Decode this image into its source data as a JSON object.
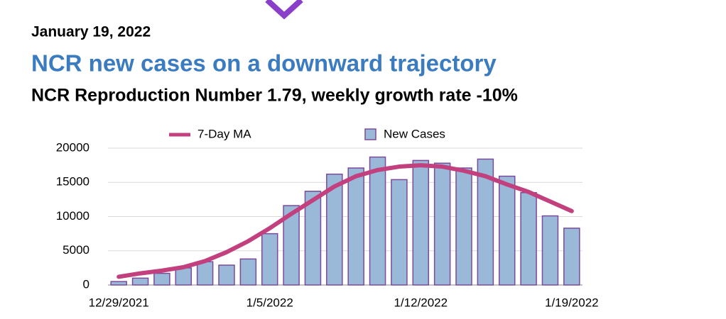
{
  "chart_data": {
    "type": "bar",
    "date": "January 19, 2022",
    "title": "NCR new cases on a downward trajectory",
    "subtitle": "NCR Reproduction Number 1.79, weekly growth rate -10%",
    "categories": [
      "12/29/2021",
      null,
      null,
      null,
      null,
      null,
      null,
      "1/5/2022",
      null,
      null,
      null,
      null,
      null,
      null,
      "1/12/2022",
      null,
      null,
      null,
      null,
      null,
      null,
      "1/19/2022"
    ],
    "series": [
      {
        "name": "7-Day MA",
        "type": "line",
        "color": "#c2407e",
        "values": [
          1200,
          1700,
          2100,
          2600,
          3500,
          4800,
          6400,
          8300,
          10400,
          12400,
          14400,
          15900,
          16800,
          17300,
          17500,
          17300,
          16700,
          15900,
          14700,
          13600,
          12200,
          10800
        ]
      },
      {
        "name": "New Cases",
        "type": "bar",
        "color": "#9ab8d8",
        "values": [
          500,
          1000,
          1700,
          2500,
          3400,
          2900,
          3800,
          7500,
          11600,
          13700,
          16200,
          17100,
          18700,
          15400,
          18200,
          17800,
          17100,
          18400,
          15900,
          13500,
          10100,
          8300
        ]
      }
    ],
    "ylim": [
      0,
      20000
    ],
    "yticks": [
      0,
      5000,
      10000,
      15000,
      20000
    ],
    "grid": true
  }
}
